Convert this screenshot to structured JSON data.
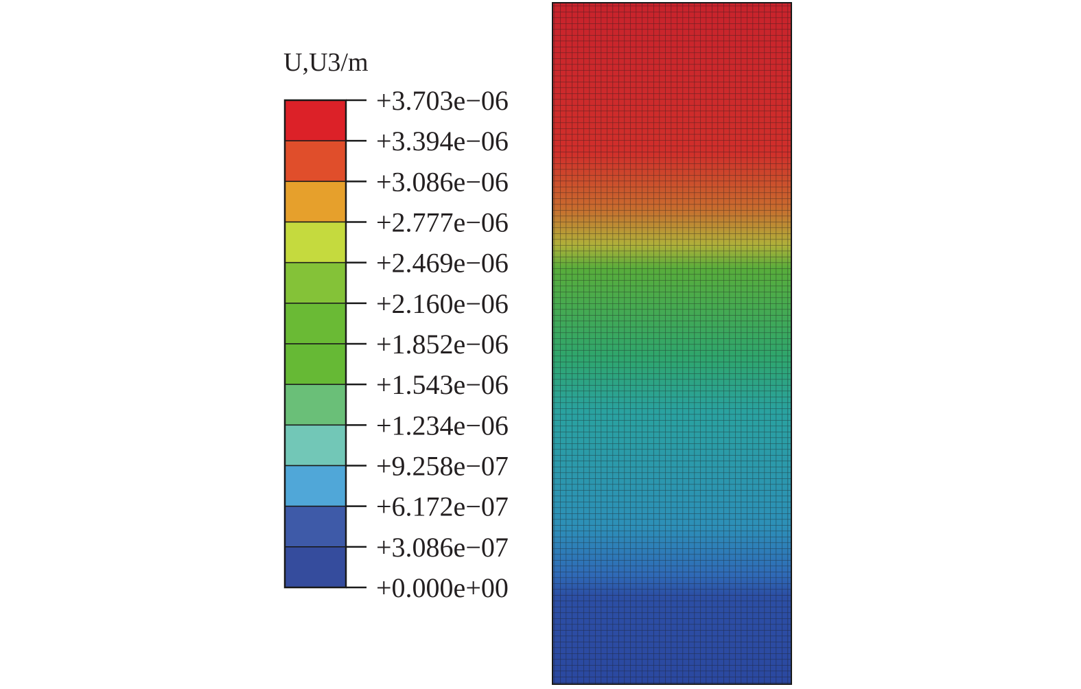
{
  "chart_data": {
    "type": "heatmap",
    "title": "U,U3/m",
    "legend_placement": "left",
    "legend": {
      "unit_label": "U,U3/m",
      "tick_labels": [
        "+3.703e−06",
        "+3.394e−06",
        "+3.086e−06",
        "+2.777e−06",
        "+2.469e−06",
        "+2.160e−06",
        "+1.852e−06",
        "+1.543e−06",
        "+1.234e−06",
        "+9.258e−07",
        "+6.172e−07",
        "+3.086e−07",
        "+0.000e+00"
      ],
      "tick_values": [
        3.703e-06,
        3.394e-06,
        3.086e-06,
        2.777e-06,
        2.469e-06,
        2.16e-06,
        1.852e-06,
        1.543e-06,
        1.234e-06,
        9.258e-07,
        6.172e-07,
        3.086e-07,
        0.0
      ],
      "band_colors": [
        "#dc2128",
        "#e04e2b",
        "#e6a02c",
        "#c5da3e",
        "#84c238",
        "#6aba35",
        "#66b935",
        "#6abf78",
        "#72c7b7",
        "#50a7d8",
        "#3e5aa8",
        "#354c9d"
      ]
    },
    "field": {
      "description_axis": "vertical",
      "range": [
        0.0,
        3.703e-06
      ],
      "mesh_grid": true,
      "zone_colors_top_to_bottom": [
        "#c8232c",
        "#d02f2b",
        "#c96a2e",
        "#b0b03a",
        "#58ad3b",
        "#2fa66d",
        "#2aa2a0",
        "#2d8fb8",
        "#2f6ab7",
        "#2c4fa5",
        "#2b48a0"
      ],
      "zone_values_top_to_bottom": [
        3.7e-06,
        3.55e-06,
        3.2e-06,
        2.9e-06,
        2.5e-06,
        1.9e-06,
        1.3e-06,
        9.5e-07,
        6.5e-07,
        3e-07,
        0.0
      ]
    }
  }
}
